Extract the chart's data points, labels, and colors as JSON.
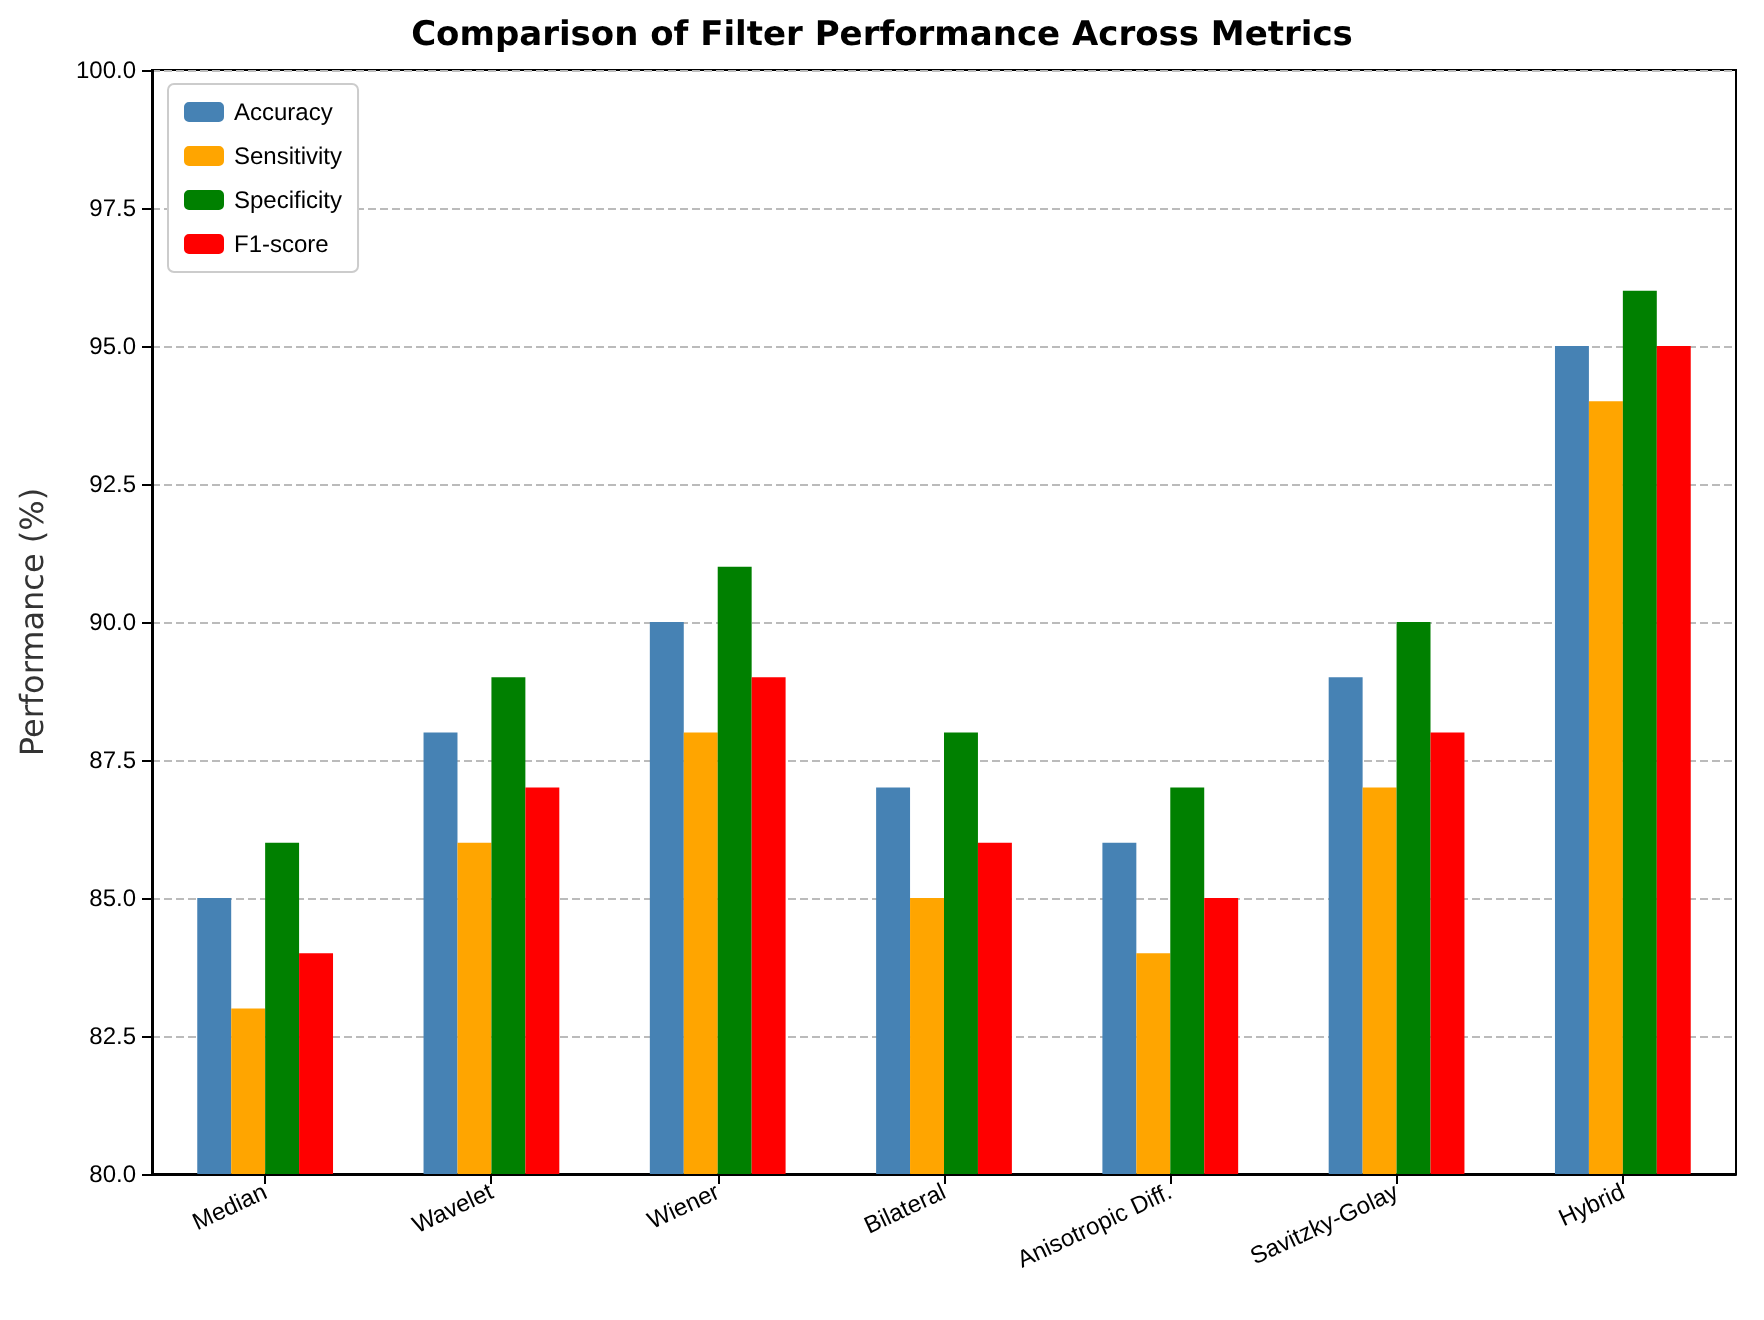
{
  "chart_data": {
    "type": "bar",
    "title": "Comparison of Filter Performance Across Metrics",
    "ylabel": "Performance (%)",
    "categories": [
      "Median",
      "Wavelet",
      "Wiener",
      "Bilateral",
      "Anisotropic Diff.",
      "Savitzky-Golay",
      "Hybrid"
    ],
    "series": [
      {
        "name": "Accuracy",
        "color": "#4682b4",
        "values": [
          85,
          88,
          90,
          87,
          86,
          89,
          95
        ]
      },
      {
        "name": "Sensitivity",
        "color": "#ffa500",
        "values": [
          83,
          86,
          88,
          85,
          84,
          87,
          94
        ]
      },
      {
        "name": "Specificity",
        "color": "#008000",
        "values": [
          86,
          89,
          91,
          88,
          87,
          90,
          96
        ]
      },
      {
        "name": "F1-score",
        "color": "#ff0000",
        "values": [
          84,
          87,
          89,
          86,
          85,
          88,
          95
        ]
      }
    ],
    "ylim": [
      80,
      100
    ],
    "yticks": [
      {
        "value": 80,
        "label": "80.0"
      },
      {
        "value": 82.5,
        "label": "82.5"
      },
      {
        "value": 85,
        "label": "85.0"
      },
      {
        "value": 87.5,
        "label": "87.5"
      },
      {
        "value": 90,
        "label": "90.0"
      },
      {
        "value": 92.5,
        "label": "92.5"
      },
      {
        "value": 95,
        "label": "95.0"
      },
      {
        "value": 97.5,
        "label": "97.5"
      },
      {
        "value": 100,
        "label": "100.0"
      }
    ],
    "grid": "y",
    "legend": "top left"
  }
}
